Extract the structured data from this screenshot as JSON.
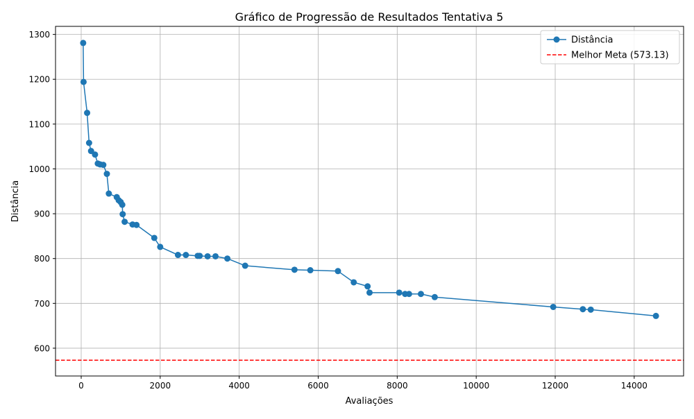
{
  "chart_data": {
    "type": "line",
    "title": "Gráfico de Progressão de Resultados Tentativa 5",
    "xlabel": "Avaliações",
    "ylabel": "Distância",
    "xlim": [
      -650,
      15250
    ],
    "ylim": [
      538,
      1318
    ],
    "xticks": [
      0,
      2000,
      4000,
      6000,
      8000,
      10000,
      12000,
      14000
    ],
    "yticks": [
      600,
      700,
      800,
      900,
      1000,
      1100,
      1200,
      1300
    ],
    "grid": true,
    "legend_position": "top-right",
    "series": [
      {
        "name": "Distância",
        "color": "#1f77b4",
        "marker": "circle",
        "x": [
          50,
          60,
          150,
          200,
          250,
          350,
          420,
          480,
          560,
          650,
          700,
          900,
          950,
          1000,
          1040,
          1050,
          1100,
          1300,
          1400,
          1850,
          2000,
          2450,
          2650,
          2950,
          3000,
          3200,
          3400,
          3700,
          4150,
          5400,
          5800,
          6500,
          6900,
          7250,
          7300,
          8050,
          8200,
          8300,
          8600,
          8950,
          11950,
          12700,
          12900,
          14550
        ],
        "y": [
          1281,
          1194,
          1125,
          1058,
          1040,
          1032,
          1012,
          1010,
          1009,
          989,
          945,
          937,
          930,
          926,
          920,
          899,
          882,
          876,
          875,
          846,
          826,
          808,
          808,
          806,
          806,
          805,
          805,
          800,
          784,
          775,
          774,
          772,
          747,
          738,
          724,
          724,
          721,
          721,
          721,
          714,
          692,
          687,
          686,
          672
        ]
      }
    ],
    "reference_lines": [
      {
        "name": "Melhor Meta (573.13)",
        "value": 573.13,
        "color": "#ff0000",
        "style": "dashed"
      }
    ]
  }
}
